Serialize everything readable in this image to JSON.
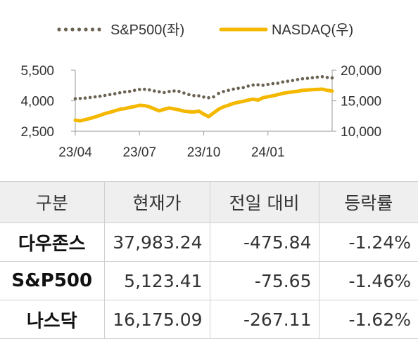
{
  "chart_data": {
    "type": "line",
    "legend_position": "top",
    "x_tick_labels": [
      "23/04",
      "23/07",
      "23/10",
      "24/01"
    ],
    "x_range": [
      0,
      52
    ],
    "x_tick_positions": [
      0,
      13,
      26,
      39
    ],
    "left_axis": {
      "range": [
        2500,
        5500
      ],
      "ticks": [
        2500,
        4000,
        5500
      ],
      "tick_labels": [
        "2,500",
        "4,000",
        "5,500"
      ]
    },
    "right_axis": {
      "range": [
        10000,
        20000
      ],
      "ticks": [
        10000,
        15000,
        20000
      ],
      "tick_labels": [
        "10,000",
        "15,000",
        "20,000"
      ]
    },
    "series": [
      {
        "name": "S&P500(좌)",
        "axis": "left",
        "style": "dotted",
        "color": "#6b6252",
        "x": [
          0,
          1,
          2,
          3,
          4,
          5,
          6,
          7,
          8,
          9,
          10,
          11,
          12,
          13,
          14,
          15,
          16,
          17,
          18,
          19,
          20,
          21,
          22,
          23,
          24,
          25,
          26,
          27,
          28,
          29,
          30,
          31,
          32,
          33,
          34,
          35,
          36,
          37,
          38,
          39,
          40,
          41,
          42,
          43,
          44,
          45,
          46,
          47,
          48,
          49,
          50,
          51,
          52
        ],
        "values": [
          4100,
          4110,
          4130,
          4160,
          4190,
          4220,
          4260,
          4300,
          4340,
          4390,
          4430,
          4460,
          4510,
          4550,
          4560,
          4530,
          4480,
          4440,
          4400,
          4450,
          4480,
          4460,
          4380,
          4300,
          4250,
          4240,
          4180,
          4150,
          4190,
          4360,
          4450,
          4510,
          4570,
          4610,
          4640,
          4720,
          4770,
          4780,
          4760,
          4800,
          4840,
          4860,
          4920,
          4960,
          4990,
          5040,
          5080,
          5100,
          5130,
          5160,
          5180,
          5140,
          5120
        ]
      },
      {
        "name": "NASDAQ(우)",
        "axis": "right",
        "style": "solid",
        "color": "#f5b800",
        "x": [
          0,
          1,
          2,
          3,
          4,
          5,
          6,
          7,
          8,
          9,
          10,
          11,
          12,
          13,
          14,
          15,
          16,
          17,
          18,
          19,
          20,
          21,
          22,
          23,
          24,
          25,
          26,
          27,
          28,
          29,
          30,
          31,
          32,
          33,
          34,
          35,
          36,
          37,
          38,
          39,
          40,
          41,
          42,
          43,
          44,
          45,
          46,
          47,
          48,
          49,
          50,
          51,
          52
        ],
        "values": [
          11800,
          11700,
          11900,
          12100,
          12350,
          12600,
          12900,
          13100,
          13350,
          13600,
          13700,
          13900,
          14050,
          14250,
          14200,
          14000,
          13650,
          13350,
          13600,
          13800,
          13650,
          13500,
          13300,
          13200,
          13150,
          13300,
          12800,
          12400,
          13000,
          13600,
          14000,
          14250,
          14550,
          14750,
          14900,
          15100,
          15250,
          15100,
          15500,
          15650,
          15800,
          16000,
          16200,
          16350,
          16450,
          16550,
          16700,
          16750,
          16800,
          16850,
          16900,
          16700,
          16600
        ]
      }
    ]
  },
  "table": {
    "headers": [
      "구분",
      "현재가",
      "전일 대비",
      "등락률"
    ],
    "rows": [
      {
        "name": "다우존스",
        "price": "37,983.24",
        "change": "-475.84",
        "rate": "-1.24%"
      },
      {
        "name": "S&P500",
        "price": "5,123.41",
        "change": "-75.65",
        "rate": "-1.46%"
      },
      {
        "name": "나스닥",
        "price": "16,175.09",
        "change": "-267.11",
        "rate": "-1.62%"
      }
    ]
  }
}
